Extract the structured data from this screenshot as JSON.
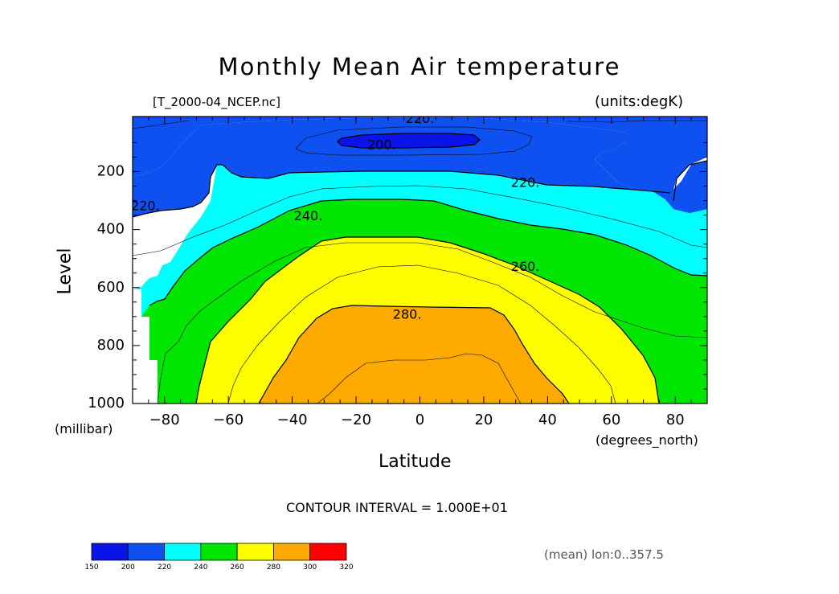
{
  "title": "Monthly Mean Air temperature",
  "source_label": "[T_2000-04_NCEP.nc]",
  "units_label": "(units:degK)",
  "y_label": "Level",
  "y_units": "(millibar)",
  "x_label": "Latitude",
  "x_units": "(degrees_north)",
  "contour_interval_text": "CONTOUR INTERVAL = 1.000E+01",
  "mean_note": "(mean) lon:0..357.5",
  "chart_data": {
    "type": "heatmap",
    "title": "Monthly Mean Air temperature",
    "xlabel": "Latitude",
    "ylabel": "Level",
    "x_units": "degrees_north",
    "y_units": "millibar",
    "value_units": "degK",
    "xlim": [
      -90,
      90
    ],
    "ylim": [
      1000,
      10
    ],
    "x_ticks": [
      -80,
      -60,
      -40,
      -20,
      0,
      20,
      40,
      60,
      80
    ],
    "y_ticks": [
      200,
      400,
      600,
      800,
      1000
    ],
    "contour_interval": 10,
    "bands": [
      {
        "min": 190,
        "max": 200,
        "color": "#0a14e6"
      },
      {
        "min": 200,
        "max": 220,
        "color": "#0f50f0"
      },
      {
        "min": 220,
        "max": 240,
        "color": "#00ffff"
      },
      {
        "min": 240,
        "max": 260,
        "color": "#00e600"
      },
      {
        "min": 260,
        "max": 280,
        "color": "#ffff00"
      },
      {
        "min": 280,
        "max": 300,
        "color": "#ffaa00"
      }
    ],
    "contour_labels": [
      {
        "text": "220.",
        "lat": 0,
        "level": 20
      },
      {
        "text": "200.",
        "lat": -12,
        "level": 110
      },
      {
        "text": "220.",
        "lat": 33,
        "level": 240
      },
      {
        "text": "220.",
        "lat": -86,
        "level": 320
      },
      {
        "text": "240.",
        "lat": -35,
        "level": 355
      },
      {
        "text": "260.",
        "lat": 33,
        "level": 530
      },
      {
        "text": "280.",
        "lat": -4,
        "level": 695
      }
    ],
    "colorbar": {
      "ticks": [
        "150",
        "200",
        "220",
        "240",
        "260",
        "280",
        "300",
        "320"
      ],
      "colors": [
        "#0a14e6",
        "#0f50f0",
        "#00ffff",
        "#00e600",
        "#ffff00",
        "#ffaa00",
        "#ff0000"
      ]
    }
  }
}
